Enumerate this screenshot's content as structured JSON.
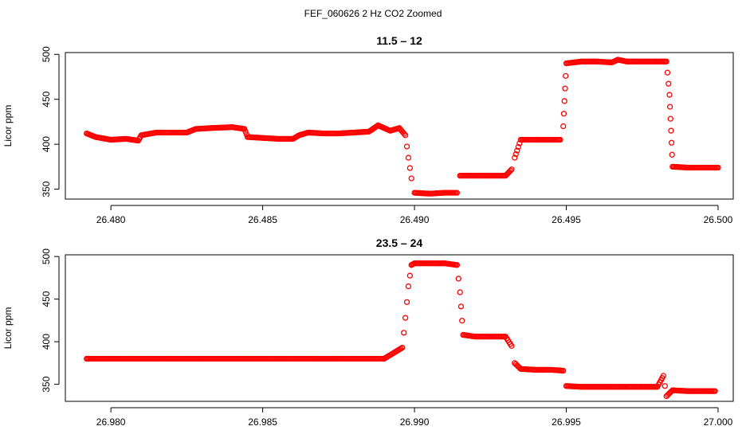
{
  "figure": {
    "title": "FEF_060626  2 Hz CO2 Zoomed"
  },
  "colors": {
    "points": "#ff0000"
  },
  "chart_data": [
    {
      "type": "scatter",
      "title": "11.5 – 12",
      "xlabel": "",
      "ylabel": "Licor ppm",
      "xlim": [
        26.4785,
        26.5005
      ],
      "ylim": [
        339,
        502
      ],
      "x_ticks": [
        26.48,
        26.485,
        26.49,
        26.495,
        26.5
      ],
      "x_tick_labels": [
        "26.480",
        "26.485",
        "26.490",
        "26.495",
        "26.500"
      ],
      "y_ticks": [
        350,
        400,
        450,
        500
      ],
      "y_tick_labels": [
        "350",
        "400",
        "450",
        "500"
      ],
      "grid": false,
      "marker": "open-circle",
      "series": [
        {
          "x": [
            26.4792,
            26.4795,
            26.48,
            26.4805,
            26.4809,
            26.481,
            26.4815,
            26.482,
            26.4825,
            26.4828,
            26.4833,
            26.484,
            26.4844,
            26.4845,
            26.485,
            26.4855,
            26.486,
            26.4862,
            26.4865,
            26.487,
            26.4875,
            26.488,
            26.4885,
            26.4888,
            26.4892,
            26.4895,
            26.4897,
            26.4898,
            26.4899,
            26.49,
            26.4905,
            26.491,
            26.4914,
            26.4915,
            26.492,
            26.4925,
            26.493,
            26.4932,
            26.4933,
            26.4935,
            26.494,
            26.4945,
            26.4948,
            26.4949,
            26.495,
            26.4955,
            26.496,
            26.4965,
            26.4967,
            26.497,
            26.4975,
            26.498,
            26.4983,
            26.4984,
            26.4985,
            26.499,
            26.4995,
            26.5
          ],
          "y": [
            412,
            408,
            405,
            406,
            404,
            410,
            413,
            413,
            413,
            417,
            418,
            419,
            417,
            408,
            407,
            406,
            406,
            410,
            413,
            412,
            412,
            413,
            414,
            421,
            415,
            418,
            410,
            385,
            362,
            346,
            345,
            346,
            346,
            365,
            365,
            365,
            365,
            372,
            385,
            405,
            405,
            405,
            405,
            420,
            490,
            492,
            492,
            491,
            494,
            492,
            492,
            492,
            492,
            455,
            375,
            374,
            374,
            374
          ]
        }
      ]
    },
    {
      "type": "scatter",
      "title": "23.5 – 24",
      "xlabel": "",
      "ylabel": "Licor ppm",
      "xlim": [
        26.9785,
        27.0005
      ],
      "ylim": [
        330,
        502
      ],
      "x_ticks": [
        26.98,
        26.985,
        26.99,
        26.995,
        27.0
      ],
      "x_tick_labels": [
        "26.980",
        "26.985",
        "26.990",
        "26.995",
        "27.000"
      ],
      "y_ticks": [
        350,
        400,
        450,
        500
      ],
      "y_tick_labels": [
        "350",
        "400",
        "450",
        "500"
      ],
      "grid": false,
      "marker": "open-circle",
      "series": [
        {
          "x": [
            26.9792,
            26.98,
            26.985,
            26.989,
            26.9896,
            26.9897,
            26.9898,
            26.9899,
            26.99,
            26.9905,
            26.991,
            26.9914,
            26.9915,
            26.9916,
            26.992,
            26.9925,
            26.993,
            26.9932,
            26.9933,
            26.9935,
            26.994,
            26.9945,
            26.9949,
            26.995,
            26.9955,
            26.996,
            26.9965,
            26.997,
            26.9975,
            26.998,
            26.9982,
            26.9983,
            26.9985,
            26.999,
            26.9995,
            26.9999
          ],
          "y": [
            380,
            380,
            380,
            380,
            393,
            428,
            465,
            490,
            492,
            492,
            492,
            490,
            458,
            408,
            406,
            406,
            406,
            395,
            375,
            368,
            367,
            367,
            366,
            348,
            347,
            347,
            347,
            347,
            347,
            347,
            360,
            336,
            343,
            342,
            342,
            342
          ]
        }
      ]
    }
  ]
}
